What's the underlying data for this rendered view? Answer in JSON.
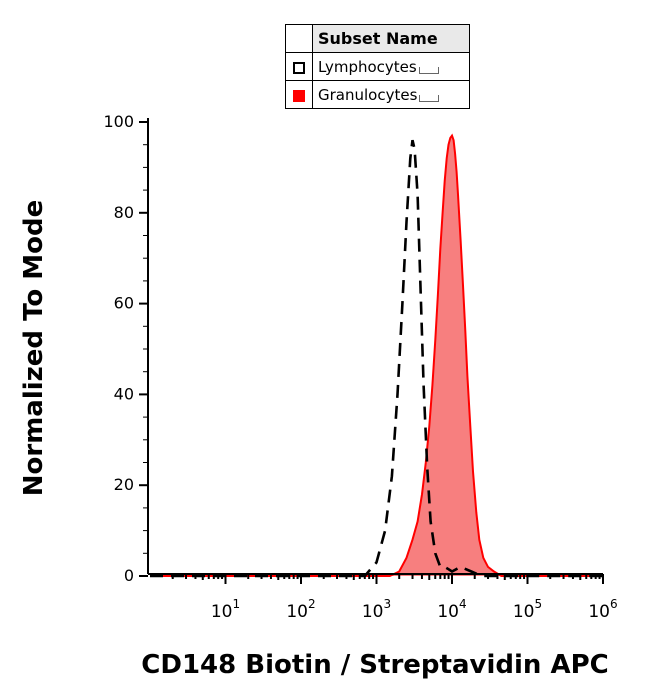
{
  "legend": {
    "header": "Subset Name",
    "items": [
      {
        "label": "Lymphocytes",
        "style": "open",
        "color": "#000000"
      },
      {
        "label": "Granulocytes",
        "style": "filled",
        "color": "#ff0000"
      }
    ]
  },
  "chart_data": {
    "type": "area",
    "title": "",
    "xlabel": "CD148 Biotin / Streptavidin APC",
    "ylabel": "Normalized To Mode",
    "x_scale": "log",
    "xlim": [
      1,
      1000000
    ],
    "ylim": [
      0,
      100
    ],
    "x_ticks": [
      {
        "base": "10",
        "exp": "1",
        "value": 10
      },
      {
        "base": "10",
        "exp": "2",
        "value": 100
      },
      {
        "base": "10",
        "exp": "3",
        "value": 1000
      },
      {
        "base": "10",
        "exp": "4",
        "value": 10000
      },
      {
        "base": "10",
        "exp": "5",
        "value": 100000
      },
      {
        "base": "10",
        "exp": "6",
        "value": 1000000
      }
    ],
    "y_ticks": [
      "0",
      "20",
      "40",
      "60",
      "80",
      "100"
    ],
    "grid": false,
    "legend_position": "top-center",
    "series": [
      {
        "name": "Lymphocytes",
        "style": "dashed",
        "color": "#000000",
        "x": [
          1,
          700,
          1000,
          1300,
          1600,
          1900,
          2200,
          2500,
          2800,
          3000,
          3200,
          3500,
          3800,
          4200,
          4700,
          5200,
          6000,
          7000,
          8000,
          9000,
          10000,
          13000,
          18000,
          25000,
          1000000
        ],
        "y": [
          0,
          0,
          3,
          10,
          22,
          40,
          60,
          78,
          92,
          96,
          94,
          84,
          65,
          42,
          24,
          12,
          5,
          2,
          2,
          1.5,
          1,
          2,
          1,
          0,
          0
        ]
      },
      {
        "name": "Granulocytes",
        "style": "filled",
        "color": "#ff0000",
        "fill": "#f77f7f",
        "x": [
          1,
          1500,
          2000,
          2500,
          3000,
          3500,
          4000,
          4500,
          5000,
          5500,
          6000,
          6500,
          7000,
          7500,
          8000,
          8500,
          9000,
          9500,
          10000,
          10500,
          11000,
          11500,
          12000,
          13000,
          14000,
          15000,
          16000,
          17500,
          19000,
          21000,
          23000,
          26000,
          30000,
          36000,
          45000,
          1000000
        ],
        "y": [
          0,
          0,
          1,
          4,
          8,
          12,
          18,
          25,
          33,
          42,
          52,
          62,
          72,
          80,
          87,
          92,
          95,
          96.5,
          97,
          96,
          93,
          89,
          84,
          74,
          64,
          54,
          44,
          33,
          23,
          14,
          8,
          4,
          2,
          1,
          0,
          0
        ]
      }
    ]
  }
}
